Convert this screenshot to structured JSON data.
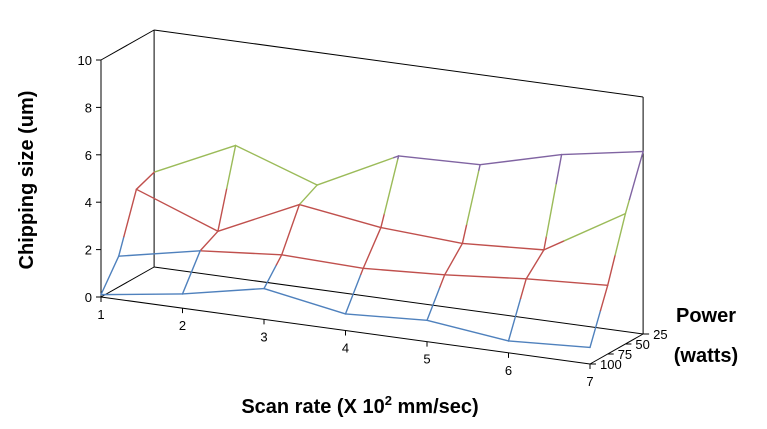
{
  "chart_data": {
    "type": "surface-3d",
    "ylabel": "Chipping size (um)",
    "xlabel_main": "Scan rate (X 10",
    "xlabel_sup": "2",
    "xlabel_end": " mm/sec)",
    "zlabel_line1": "Power",
    "zlabel_line2": "(watts)",
    "ylim": [
      0,
      10
    ],
    "y_ticks": [
      "0",
      "2",
      "4",
      "6",
      "8",
      "10"
    ],
    "x": [
      1,
      2,
      3,
      4,
      5,
      6,
      7
    ],
    "x_ticks": [
      "1",
      "2",
      "3",
      "4",
      "5",
      "6",
      "7"
    ],
    "power": [
      100,
      75,
      50,
      25
    ],
    "power_ticks": [
      "100",
      "75",
      "50",
      "25"
    ],
    "band_colors": [
      "#4f81bd",
      "#c0504d",
      "#9bbb59",
      "#8064a2",
      "#4bacc6"
    ],
    "band_ranges": [
      "0-2",
      "2-4",
      "4-6",
      "6-8",
      "8-10"
    ],
    "series": [
      {
        "power": 100,
        "values": [
          0.1,
          0.6,
          1.3,
          0.7,
          0.9,
          0.5,
          0.7
        ]
      },
      {
        "power": 75,
        "values": [
          1.3,
          2.0,
          2.3,
          2.2,
          2.4,
          2.7,
          2.9
        ]
      },
      {
        "power": 50,
        "values": [
          3.7,
          2.4,
          4.0,
          3.5,
          3.3,
          3.5,
          5.5
        ]
      },
      {
        "power": 25,
        "values": [
          4.0,
          5.6,
          4.4,
          6.1,
          6.2,
          7.1,
          7.7
        ]
      }
    ]
  }
}
